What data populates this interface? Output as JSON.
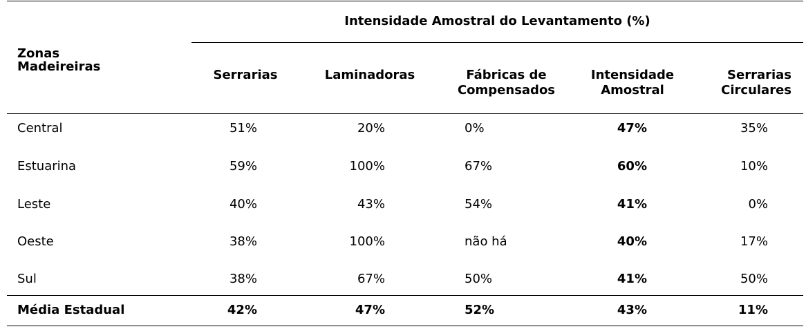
{
  "table": {
    "group_header": "Intensidade Amostral do Levantamento (%)",
    "row_header": [
      "Zonas",
      "Madeireiras"
    ],
    "columns": [
      {
        "lines": [
          "Serrarias"
        ]
      },
      {
        "lines": [
          "Laminadoras"
        ]
      },
      {
        "lines": [
          "Fábricas de",
          "Compensados"
        ]
      },
      {
        "lines": [
          "Intensidade",
          "Amostral"
        ]
      },
      {
        "lines": [
          "Serrarias",
          "Circulares"
        ]
      }
    ],
    "rows": [
      {
        "zone": "Central",
        "values": [
          "51%",
          "20%",
          "0%",
          "47%",
          "35%"
        ]
      },
      {
        "zone": "Estuarina",
        "values": [
          "59%",
          "100%",
          "67%",
          "60%",
          "10%"
        ]
      },
      {
        "zone": "Leste",
        "values": [
          "40%",
          "43%",
          "54%",
          "41%",
          "0%"
        ]
      },
      {
        "zone": "Oeste",
        "values": [
          "38%",
          "100%",
          "não há",
          "40%",
          "17%"
        ]
      },
      {
        "zone": "Sul",
        "values": [
          "38%",
          "67%",
          "50%",
          "41%",
          "50%"
        ]
      }
    ],
    "total": {
      "zone": "Média Estadual",
      "values": [
        "42%",
        "47%",
        "52%",
        "43%",
        "11%"
      ]
    }
  }
}
